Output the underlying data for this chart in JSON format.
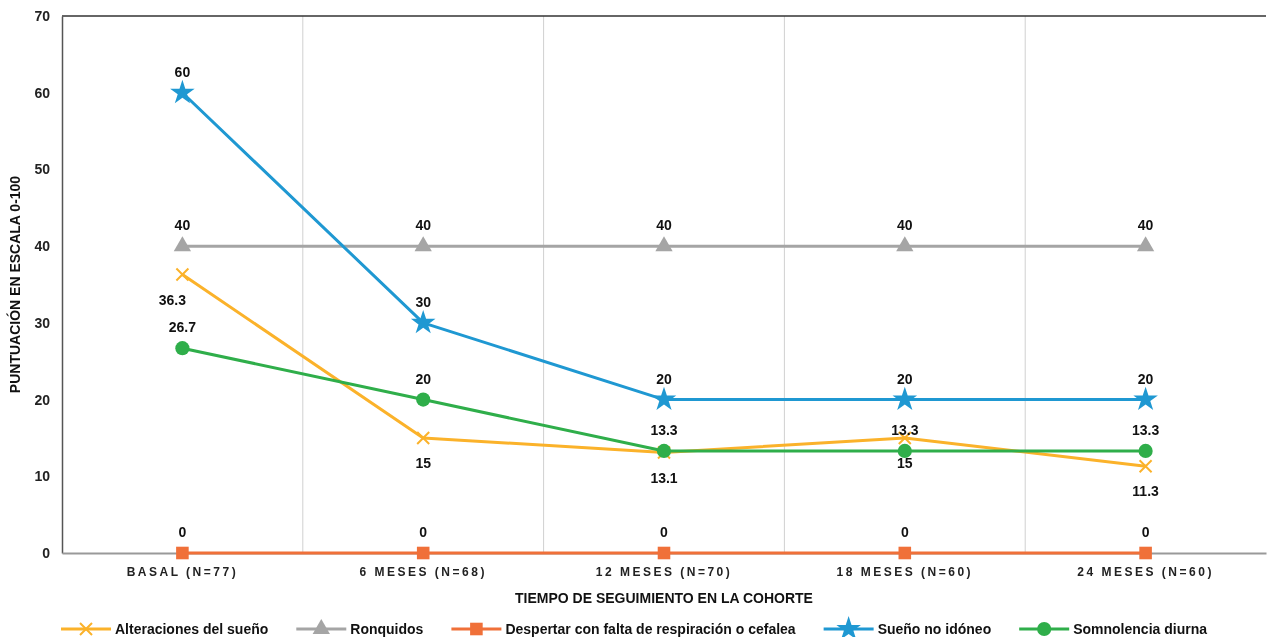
{
  "chart_data": {
    "type": "line",
    "xlabel": "TIEMPO DE SEGUIMIENTO EN LA COHORTE",
    "ylabel": "PUNTUACIÓN EN ESCALA 0-100",
    "categories": [
      "BASAL (N=77)",
      "6 MESES (N=68)",
      "12 MESES (N=70)",
      "18 MESES (N=60)",
      "24 MESES (N=60)"
    ],
    "series": [
      {
        "name": "Alteraciones del sueño",
        "color": "#fbb22a",
        "marker": "cross",
        "values": [
          36.3,
          15,
          13.1,
          15,
          11.3
        ]
      },
      {
        "name": "Ronquidos",
        "color": "#a5a5a5",
        "marker": "triangle",
        "values": [
          40,
          40,
          40,
          40,
          40
        ]
      },
      {
        "name": "Despertar con falta de respiración o cefalea",
        "color": "#f07039",
        "marker": "square",
        "values": [
          0,
          0,
          0,
          0,
          0
        ]
      },
      {
        "name": "Sueño no idóneo",
        "color": "#1f98d2",
        "marker": "star",
        "values": [
          60,
          30,
          20,
          20,
          20
        ]
      },
      {
        "name": "Somnolencia diurna",
        "color": "#2fae4a",
        "marker": "circle",
        "values": [
          26.7,
          20,
          13.3,
          13.3,
          13.3
        ]
      }
    ],
    "ylim": [
      0,
      70
    ],
    "yticks": [
      0,
      10,
      20,
      30,
      40,
      50,
      60,
      70
    ],
    "grid": "x",
    "legend": "bottom",
    "data_labels": true,
    "line_style": "solid"
  }
}
